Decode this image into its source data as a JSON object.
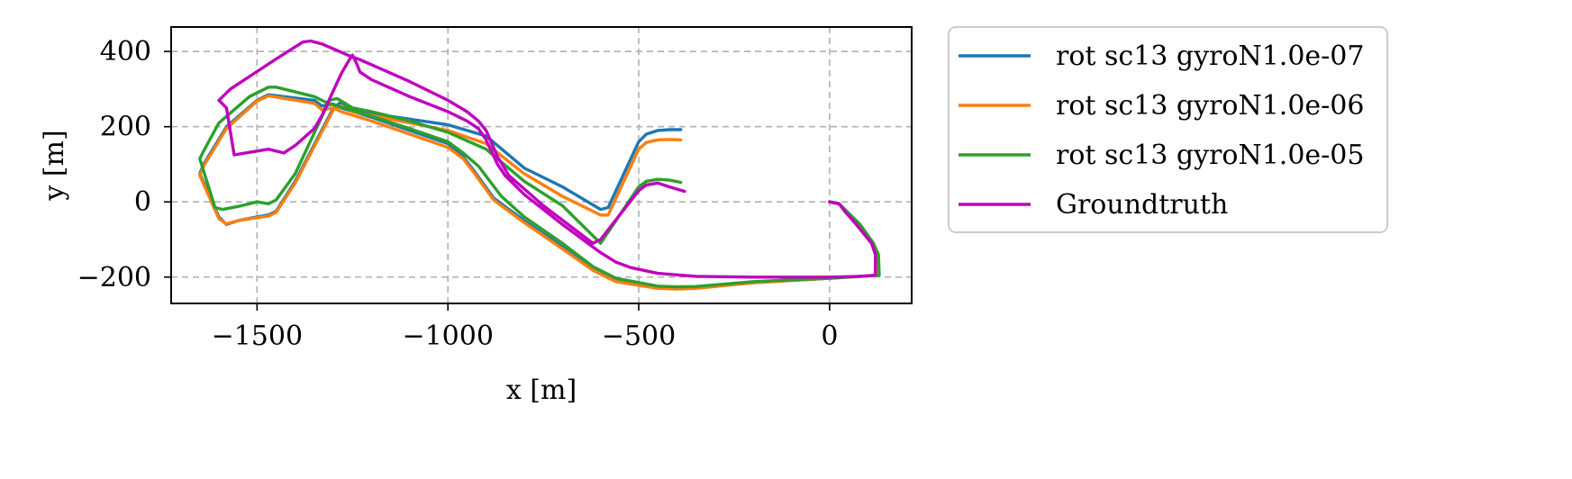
{
  "chart_data": {
    "type": "line",
    "title": "",
    "xlabel": "x [m]",
    "ylabel": "y [m]",
    "xlim": [
      -1725,
      215
    ],
    "ylim": [
      -270,
      465
    ],
    "x_ticks": [
      -1500,
      -1000,
      -500,
      0
    ],
    "x_tick_labels": [
      "−1500",
      "−1000",
      "−500",
      "0"
    ],
    "y_ticks": [
      -200,
      0,
      200,
      400
    ],
    "y_tick_labels": [
      "−200",
      "0",
      "200",
      "400"
    ],
    "grid": true,
    "legend_position": "outside-upper-right",
    "series": [
      {
        "name": "rot sc13 gyroN1.0e-07",
        "color": "#1f77b4",
        "points": [
          [
            0,
            0
          ],
          [
            25,
            -5
          ],
          [
            40,
            -25
          ],
          [
            70,
            -60
          ],
          [
            110,
            -110
          ],
          [
            125,
            -140
          ],
          [
            125,
            -195
          ],
          [
            80,
            -198
          ],
          [
            0,
            -203
          ],
          [
            -200,
            -215
          ],
          [
            -350,
            -228
          ],
          [
            -400,
            -230
          ],
          [
            -450,
            -228
          ],
          [
            -560,
            -210
          ],
          [
            -620,
            -180
          ],
          [
            -700,
            -120
          ],
          [
            -800,
            -50
          ],
          [
            -880,
            10
          ],
          [
            -930,
            80
          ],
          [
            -960,
            120
          ],
          [
            -1000,
            155
          ],
          [
            -1100,
            190
          ],
          [
            -1200,
            225
          ],
          [
            -1280,
            250
          ],
          [
            -1300,
            260
          ],
          [
            -1330,
            255
          ],
          [
            -1350,
            270
          ],
          [
            -1470,
            285
          ],
          [
            -1500,
            270
          ],
          [
            -1580,
            200
          ],
          [
            -1640,
            100
          ],
          [
            -1650,
            75
          ],
          [
            -1600,
            -40
          ],
          [
            -1580,
            -60
          ],
          [
            -1550,
            -50
          ],
          [
            -1500,
            -40
          ],
          [
            -1470,
            -35
          ],
          [
            -1450,
            -25
          ],
          [
            -1400,
            55
          ],
          [
            -1300,
            250
          ],
          [
            -1280,
            265
          ],
          [
            -1250,
            245
          ],
          [
            -1200,
            235
          ],
          [
            -1100,
            220
          ],
          [
            -1000,
            205
          ],
          [
            -900,
            175
          ],
          [
            -800,
            90
          ],
          [
            -700,
            40
          ],
          [
            -600,
            -20
          ],
          [
            -580,
            -15
          ],
          [
            -500,
            160
          ],
          [
            -480,
            180
          ],
          [
            -450,
            190
          ],
          [
            -420,
            192
          ],
          [
            -390,
            192
          ]
        ]
      },
      {
        "name": "rot sc13 gyroN1.0e-06",
        "color": "#ff7f0e",
        "points": [
          [
            0,
            0
          ],
          [
            25,
            -5
          ],
          [
            40,
            -25
          ],
          [
            70,
            -60
          ],
          [
            110,
            -110
          ],
          [
            125,
            -140
          ],
          [
            125,
            -195
          ],
          [
            80,
            -198
          ],
          [
            0,
            -203
          ],
          [
            -200,
            -215
          ],
          [
            -350,
            -230
          ],
          [
            -400,
            -232
          ],
          [
            -450,
            -230
          ],
          [
            -560,
            -212
          ],
          [
            -620,
            -182
          ],
          [
            -700,
            -125
          ],
          [
            -800,
            -55
          ],
          [
            -880,
            5
          ],
          [
            -930,
            75
          ],
          [
            -960,
            115
          ],
          [
            -1000,
            145
          ],
          [
            -1100,
            180
          ],
          [
            -1200,
            215
          ],
          [
            -1280,
            240
          ],
          [
            -1300,
            250
          ],
          [
            -1330,
            245
          ],
          [
            -1350,
            262
          ],
          [
            -1470,
            282
          ],
          [
            -1500,
            268
          ],
          [
            -1580,
            195
          ],
          [
            -1640,
            95
          ],
          [
            -1650,
            70
          ],
          [
            -1600,
            -45
          ],
          [
            -1580,
            -58
          ],
          [
            -1550,
            -50
          ],
          [
            -1500,
            -42
          ],
          [
            -1470,
            -38
          ],
          [
            -1450,
            -28
          ],
          [
            -1400,
            50
          ],
          [
            -1300,
            245
          ],
          [
            -1280,
            255
          ],
          [
            -1250,
            240
          ],
          [
            -1200,
            230
          ],
          [
            -1100,
            210
          ],
          [
            -1000,
            190
          ],
          [
            -900,
            155
          ],
          [
            -800,
            75
          ],
          [
            -700,
            15
          ],
          [
            -600,
            -35
          ],
          [
            -580,
            -35
          ],
          [
            -500,
            140
          ],
          [
            -480,
            158
          ],
          [
            -450,
            165
          ],
          [
            -420,
            166
          ],
          [
            -390,
            165
          ]
        ]
      },
      {
        "name": "rot sc13 gyroN1.0e-05",
        "color": "#2ca02c",
        "points": [
          [
            0,
            0
          ],
          [
            25,
            -5
          ],
          [
            45,
            -25
          ],
          [
            80,
            -60
          ],
          [
            115,
            -110
          ],
          [
            128,
            -140
          ],
          [
            130,
            -195
          ],
          [
            80,
            -198
          ],
          [
            0,
            -203
          ],
          [
            -200,
            -212
          ],
          [
            -350,
            -225
          ],
          [
            -400,
            -226
          ],
          [
            -450,
            -224
          ],
          [
            -560,
            -203
          ],
          [
            -620,
            -172
          ],
          [
            -700,
            -110
          ],
          [
            -800,
            -40
          ],
          [
            -860,
            15
          ],
          [
            -920,
            95
          ],
          [
            -960,
            130
          ],
          [
            -1000,
            160
          ],
          [
            -1100,
            195
          ],
          [
            -1200,
            228
          ],
          [
            -1280,
            252
          ],
          [
            -1320,
            265
          ],
          [
            -1350,
            280
          ],
          [
            -1450,
            305
          ],
          [
            -1470,
            305
          ],
          [
            -1520,
            280
          ],
          [
            -1600,
            210
          ],
          [
            -1640,
            135
          ],
          [
            -1650,
            115
          ],
          [
            -1610,
            -15
          ],
          [
            -1590,
            -20
          ],
          [
            -1540,
            -10
          ],
          [
            -1500,
            0
          ],
          [
            -1470,
            -5
          ],
          [
            -1450,
            5
          ],
          [
            -1400,
            75
          ],
          [
            -1310,
            270
          ],
          [
            -1290,
            275
          ],
          [
            -1250,
            250
          ],
          [
            -1200,
            240
          ],
          [
            -1100,
            215
          ],
          [
            -1000,
            185
          ],
          [
            -900,
            140
          ],
          [
            -800,
            55
          ],
          [
            -700,
            -10
          ],
          [
            -610,
            -100
          ],
          [
            -600,
            -110
          ],
          [
            -500,
            40
          ],
          [
            -480,
            55
          ],
          [
            -450,
            60
          ],
          [
            -420,
            58
          ],
          [
            -390,
            52
          ]
        ]
      },
      {
        "name": "Groundtruth",
        "color": "#bf00bf",
        "points": [
          [
            0,
            0
          ],
          [
            25,
            -5
          ],
          [
            40,
            -25
          ],
          [
            70,
            -60
          ],
          [
            110,
            -110
          ],
          [
            120,
            -140
          ],
          [
            120,
            -195
          ],
          [
            80,
            -198
          ],
          [
            0,
            -200
          ],
          [
            -100,
            -200
          ],
          [
            -200,
            -200
          ],
          [
            -350,
            -198
          ],
          [
            -450,
            -190
          ],
          [
            -520,
            -175
          ],
          [
            -560,
            -160
          ],
          [
            -600,
            -135
          ],
          [
            -700,
            -60
          ],
          [
            -800,
            20
          ],
          [
            -850,
            70
          ],
          [
            -870,
            100
          ],
          [
            -900,
            165
          ],
          [
            -920,
            195
          ],
          [
            -950,
            215
          ],
          [
            -1000,
            240
          ],
          [
            -1100,
            280
          ],
          [
            -1200,
            325
          ],
          [
            -1230,
            345
          ],
          [
            -1240,
            370
          ],
          [
            -1250,
            390
          ],
          [
            -1260,
            375
          ],
          [
            -1280,
            340
          ],
          [
            -1330,
            230
          ],
          [
            -1350,
            195
          ],
          [
            -1400,
            150
          ],
          [
            -1430,
            130
          ],
          [
            -1470,
            140
          ],
          [
            -1500,
            135
          ],
          [
            -1560,
            125
          ],
          [
            -1580,
            250
          ],
          [
            -1600,
            270
          ],
          [
            -1570,
            300
          ],
          [
            -1450,
            380
          ],
          [
            -1380,
            425
          ],
          [
            -1360,
            428
          ],
          [
            -1330,
            420
          ],
          [
            -1250,
            385
          ],
          [
            -1230,
            378
          ],
          [
            -1100,
            320
          ],
          [
            -1000,
            270
          ],
          [
            -950,
            240
          ],
          [
            -920,
            215
          ],
          [
            -900,
            190
          ],
          [
            -870,
            120
          ],
          [
            -840,
            70
          ],
          [
            -750,
            -10
          ],
          [
            -620,
            -110
          ],
          [
            -600,
            -100
          ],
          [
            -500,
            30
          ],
          [
            -480,
            45
          ],
          [
            -450,
            50
          ],
          [
            -420,
            40
          ],
          [
            -380,
            28
          ]
        ]
      }
    ]
  }
}
